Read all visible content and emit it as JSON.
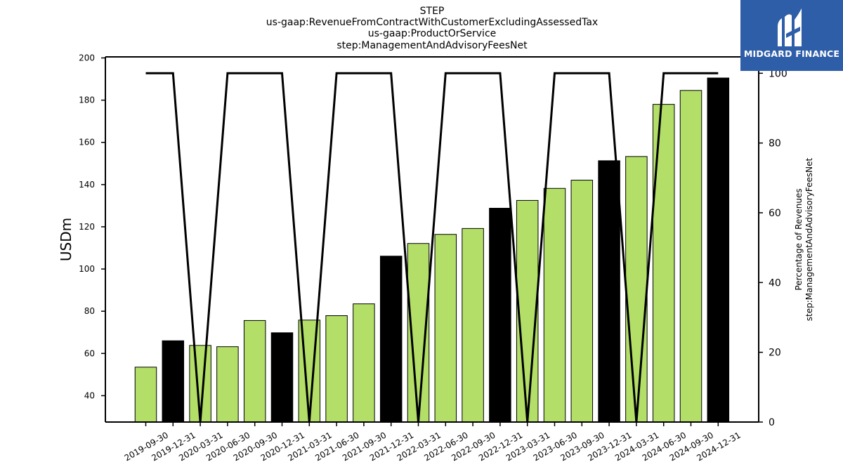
{
  "chart_data": {
    "type": "bar",
    "title_lines": [
      "STEP",
      "us-gaap:RevenueFromContractWithCustomerExcludingAssessedTax",
      "us-gaap:ProductOrService",
      "step:ManagementAndAdvisoryFeesNet"
    ],
    "ylabel": "USDm",
    "y2label_lines": [
      "Percentage of Revenues",
      "step:ManagementAndAdvisoryFeesNet"
    ],
    "ylim": [
      27.5,
      200.5
    ],
    "y2lim": [
      0,
      104.7
    ],
    "yticks": [
      40,
      60,
      80,
      100,
      120,
      140,
      160,
      180,
      200
    ],
    "y2ticks": [
      0,
      20,
      40,
      60,
      80,
      100
    ],
    "grid": false,
    "categories": [
      "2019-09-30",
      "2019-12-31",
      "2020-03-31",
      "2020-06-30",
      "2020-09-30",
      "2020-12-31",
      "2021-03-31",
      "2021-06-30",
      "2021-09-30",
      "2021-12-31",
      "2022-03-31",
      "2022-06-30",
      "2022-09-30",
      "2022-12-31",
      "2023-03-31",
      "2023-06-30",
      "2023-09-30",
      "2023-12-31",
      "2024-03-31",
      "2024-06-30",
      "2024-09-30",
      "2024-12-31"
    ],
    "bar_values": [
      53.5,
      66,
      63.8,
      63.2,
      75.6,
      69.8,
      75.8,
      77.9,
      83.5,
      106.1,
      112.1,
      116.4,
      119.2,
      128.8,
      132.5,
      138.2,
      142.1,
      151.3,
      153.3,
      178,
      184.6,
      190.5
    ],
    "bar_colors": [
      "#b3df68",
      "#000000",
      "#b3df68",
      "#b3df68",
      "#b3df68",
      "#000000",
      "#b3df68",
      "#b3df68",
      "#b3df68",
      "#000000",
      "#b3df68",
      "#b3df68",
      "#b3df68",
      "#000000",
      "#b3df68",
      "#b3df68",
      "#b3df68",
      "#000000",
      "#b3df68",
      "#b3df68",
      "#b3df68",
      "#000000"
    ],
    "line_values": [
      100,
      100,
      0,
      100,
      100,
      100,
      0,
      100,
      100,
      100,
      0,
      100,
      100,
      100,
      0,
      100,
      100,
      100,
      0,
      100,
      100,
      100
    ],
    "colors": {
      "bar_green": "#b3df68",
      "bar_black": "#000000",
      "line": "#000000"
    }
  },
  "logo": {
    "text": "MIDGARD FINANCE",
    "background": "#2f5ea8",
    "icon": "mf-monogram-icon"
  }
}
